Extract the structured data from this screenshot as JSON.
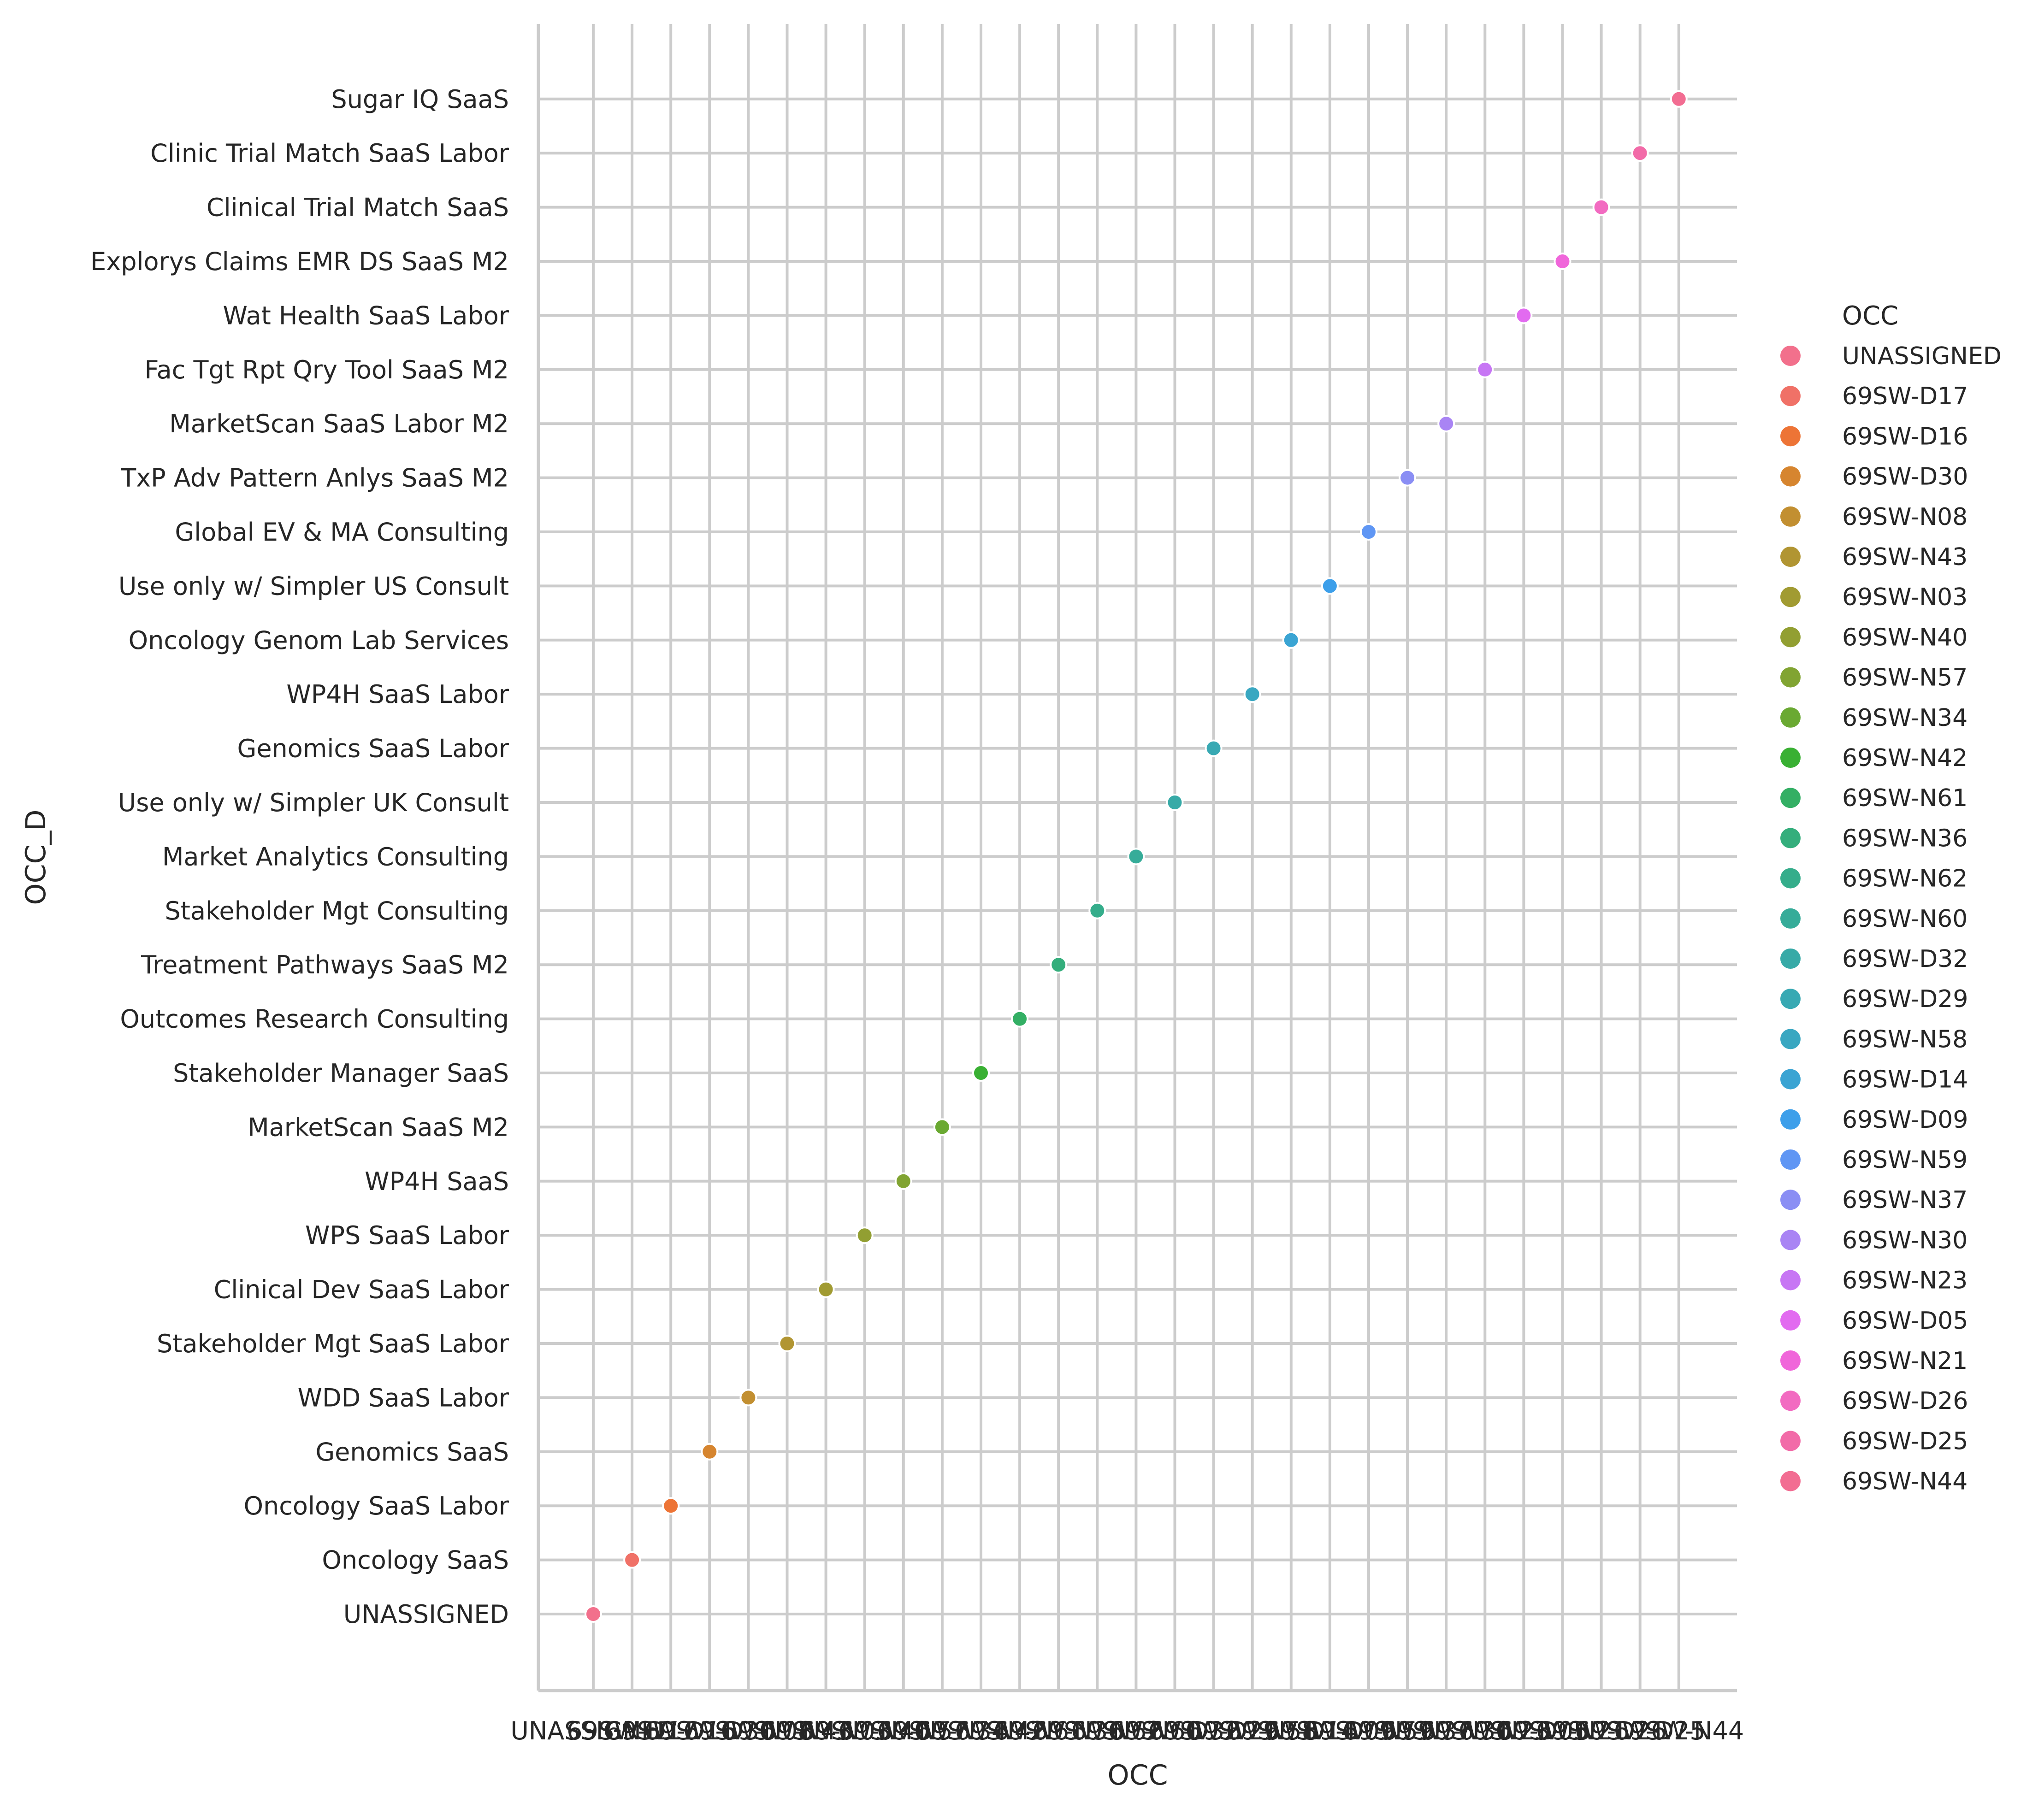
{
  "chart_data": {
    "type": "scatter",
    "xlabel": "OCC",
    "ylabel": "OCC_D",
    "grid": true,
    "legend": {
      "title": "OCC",
      "placement": "right"
    },
    "x_categories": [
      "UNASSIGNED",
      "69SW-D17",
      "69SW-D16",
      "69SW-D30",
      "69SW-N08",
      "69SW-N43",
      "69SW-N03",
      "69SW-N40",
      "69SW-N57",
      "69SW-N34",
      "69SW-N42",
      "69SW-N61",
      "69SW-N36",
      "69SW-N62",
      "69SW-N60",
      "69SW-D32",
      "69SW-D29",
      "69SW-N58",
      "69SW-D14",
      "69SW-D09",
      "69SW-N59",
      "69SW-N37",
      "69SW-N30",
      "69SW-N23",
      "69SW-D05",
      "69SW-N21",
      "69SW-D26",
      "69SW-D25",
      "69SW-N44"
    ],
    "y_categories": [
      "UNASSIGNED",
      "Oncology SaaS",
      "Oncology SaaS Labor",
      "Genomics SaaS",
      "WDD SaaS Labor",
      "Stakeholder Mgt SaaS Labor",
      "Clinical Dev SaaS Labor",
      "WPS SaaS Labor",
      "WP4H SaaS",
      "MarketScan SaaS M2",
      "Stakeholder Manager SaaS",
      "Outcomes Research Consulting",
      "Treatment Pathways SaaS M2",
      "Stakeholder Mgt Consulting",
      "Market Analytics Consulting",
      "Use only w/ Simpler UK Consult",
      "Genomics SaaS Labor",
      "WP4H SaaS Labor",
      "Oncology Genom Lab Services",
      "Use only w/ Simpler US Consult",
      "Global EV & MA Consulting",
      "TxP Adv Pattern Anlys SaaS M2",
      "MarketScan SaaS Labor M2",
      "Fac Tgt Rpt Qry Tool SaaS M2",
      "Wat Health SaaS Labor",
      "Explorys Claims EMR DS SaaS M2",
      "Clinical Trial Match SaaS",
      "Clinic Trial Match SaaS Labor",
      "Sugar IQ SaaS"
    ],
    "colors": [
      "#f2708c",
      "#f07167",
      "#ed7436",
      "#d6852f",
      "#c28f31",
      "#b19532",
      "#a19b32",
      "#929f32",
      "#81a432",
      "#6aa932",
      "#39b033",
      "#33af64",
      "#34ae7c",
      "#35ad8b",
      "#36ac99",
      "#37aaa7",
      "#38a9b3",
      "#39a7c1",
      "#3aa4d3",
      "#3d9fea",
      "#5f96f4",
      "#8a8ef4",
      "#a984f4",
      "#c776f4",
      "#e26bf0",
      "#f066da",
      "#f26bc1",
      "#f26ba8",
      "#f26d92"
    ],
    "points": [
      {
        "x": "UNASSIGNED",
        "y": "UNASSIGNED"
      },
      {
        "x": "69SW-D17",
        "y": "Oncology SaaS"
      },
      {
        "x": "69SW-D16",
        "y": "Oncology SaaS Labor"
      },
      {
        "x": "69SW-D30",
        "y": "Genomics SaaS"
      },
      {
        "x": "69SW-N08",
        "y": "WDD SaaS Labor"
      },
      {
        "x": "69SW-N43",
        "y": "Stakeholder Mgt SaaS Labor"
      },
      {
        "x": "69SW-N03",
        "y": "Clinical Dev SaaS Labor"
      },
      {
        "x": "69SW-N40",
        "y": "WPS SaaS Labor"
      },
      {
        "x": "69SW-N57",
        "y": "WP4H SaaS"
      },
      {
        "x": "69SW-N34",
        "y": "MarketScan SaaS M2"
      },
      {
        "x": "69SW-N42",
        "y": "Stakeholder Manager SaaS"
      },
      {
        "x": "69SW-N61",
        "y": "Outcomes Research Consulting"
      },
      {
        "x": "69SW-N36",
        "y": "Treatment Pathways SaaS M2"
      },
      {
        "x": "69SW-N62",
        "y": "Stakeholder Mgt Consulting"
      },
      {
        "x": "69SW-N60",
        "y": "Market Analytics Consulting"
      },
      {
        "x": "69SW-D32",
        "y": "Use only w/ Simpler UK Consult"
      },
      {
        "x": "69SW-D29",
        "y": "Genomics SaaS Labor"
      },
      {
        "x": "69SW-N58",
        "y": "WP4H SaaS Labor"
      },
      {
        "x": "69SW-D14",
        "y": "Oncology Genom Lab Services"
      },
      {
        "x": "69SW-D09",
        "y": "Use only w/ Simpler US Consult"
      },
      {
        "x": "69SW-N59",
        "y": "Global EV & MA Consulting"
      },
      {
        "x": "69SW-N37",
        "y": "TxP Adv Pattern Anlys SaaS M2"
      },
      {
        "x": "69SW-N30",
        "y": "MarketScan SaaS Labor M2"
      },
      {
        "x": "69SW-N23",
        "y": "Fac Tgt Rpt Qry Tool SaaS M2"
      },
      {
        "x": "69SW-D05",
        "y": "Wat Health SaaS Labor"
      },
      {
        "x": "69SW-N21",
        "y": "Explorys Claims EMR DS SaaS M2"
      },
      {
        "x": "69SW-D26",
        "y": "Clinical Trial Match SaaS"
      },
      {
        "x": "69SW-D25",
        "y": "Clinic Trial Match SaaS Labor"
      },
      {
        "x": "69SW-N44",
        "y": "Sugar IQ SaaS"
      }
    ]
  }
}
